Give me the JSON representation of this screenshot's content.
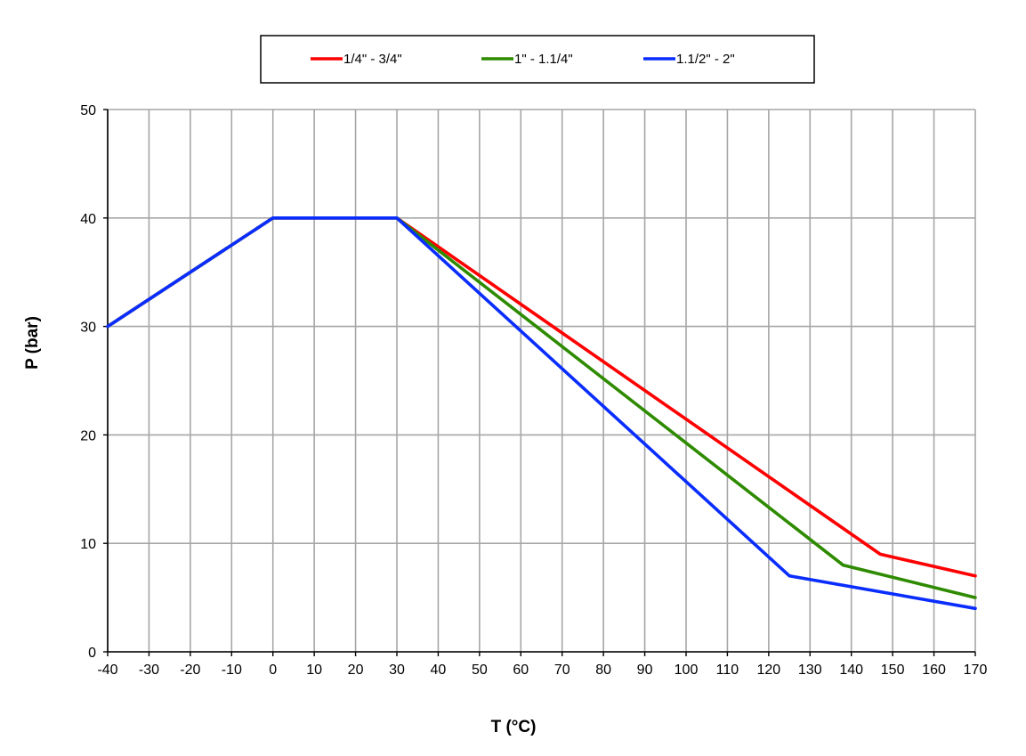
{
  "chart_data": {
    "type": "line",
    "title": "",
    "xlabel": "T (°C)",
    "ylabel": "P (bar)",
    "xlim": [
      -40,
      170
    ],
    "ylim": [
      0,
      50
    ],
    "x_ticks": [
      -40,
      -30,
      -20,
      -10,
      0,
      10,
      20,
      30,
      40,
      50,
      60,
      70,
      80,
      90,
      100,
      110,
      120,
      130,
      140,
      150,
      160,
      170
    ],
    "y_ticks": [
      0,
      10,
      20,
      30,
      40,
      50
    ],
    "grid": true,
    "legend_position": "top-center",
    "series": [
      {
        "name": "1/4\" - 3/4\"",
        "color": "#ff0000",
        "points": [
          [
            -40,
            30
          ],
          [
            0,
            40
          ],
          [
            30,
            40
          ],
          [
            147,
            9
          ],
          [
            170,
            7
          ]
        ]
      },
      {
        "name": "1\" - 1.1/4\"",
        "color": "#2e8b00",
        "points": [
          [
            -40,
            30
          ],
          [
            0,
            40
          ],
          [
            30,
            40
          ],
          [
            138,
            8
          ],
          [
            170,
            5
          ]
        ]
      },
      {
        "name": "1.1/2\" - 2\"",
        "color": "#0a2dff",
        "points": [
          [
            -40,
            30
          ],
          [
            0,
            40
          ],
          [
            30,
            40
          ],
          [
            125,
            7
          ],
          [
            170,
            4
          ]
        ]
      }
    ]
  }
}
